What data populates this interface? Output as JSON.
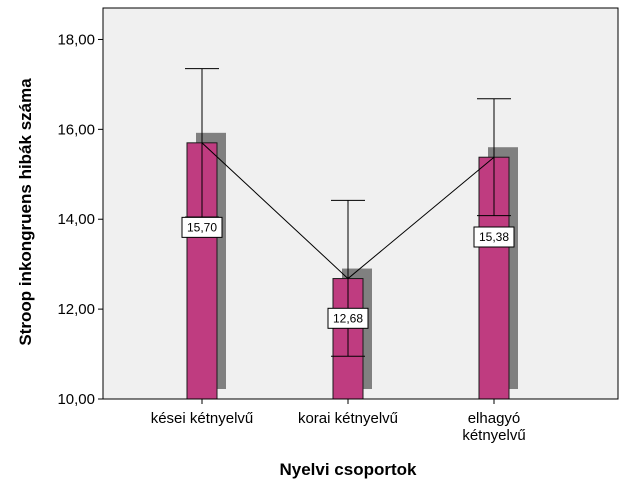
{
  "chart_data": {
    "type": "bar",
    "xlabel": "Nyelvi csoportok",
    "ylabel": "Stroop inkongruens hibák száma",
    "categories": [
      [
        "kései kétnyelvű"
      ],
      [
        "korai kétnyelvű"
      ],
      [
        "elhagyó",
        "kétnyelvű"
      ]
    ],
    "values": [
      15.7,
      12.68,
      15.38
    ],
    "data_labels": [
      "15,70",
      "12,68",
      "15,38"
    ],
    "error_bars": [
      {
        "upper": 17.35,
        "lower": 14.05
      },
      {
        "upper": 14.42,
        "lower": 10.95
      },
      {
        "upper": 16.68,
        "lower": 14.08
      }
    ],
    "ylim": [
      10,
      18.7
    ],
    "yticks": [
      10,
      12,
      14,
      16,
      18
    ],
    "ytick_labels": [
      "10,00",
      "12,00",
      "14,00",
      "16,00",
      "18,00"
    ],
    "connecting_line": true,
    "grid": false,
    "colors": {
      "bar": "#bf3c80",
      "bar_stroke": "#1a1a1a",
      "shadow": "#808080",
      "plot_bg": "#f0f0f0"
    }
  }
}
